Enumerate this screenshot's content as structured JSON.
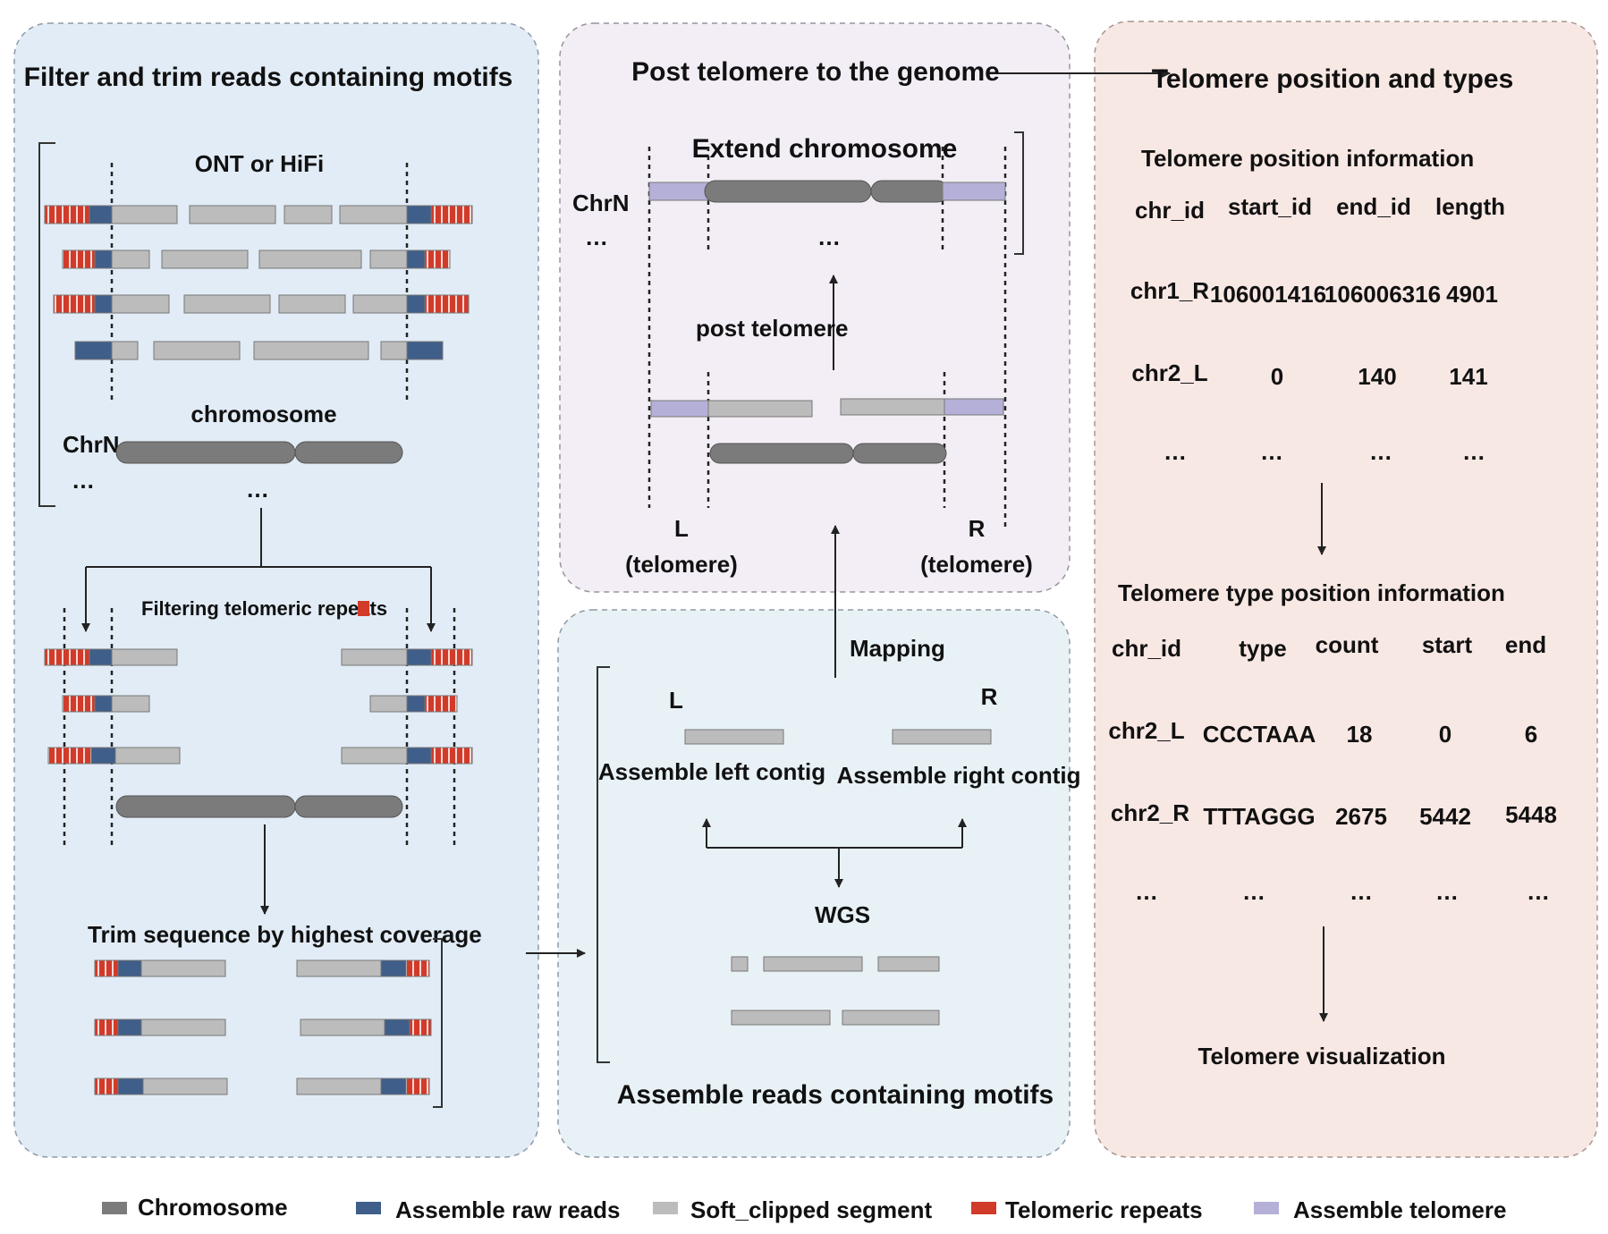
{
  "colors": {
    "chromosome": "#7b7b7b",
    "raw_reads": "#3f5e89",
    "soft_clipped": "#bcbcbc",
    "telomeric_repeats": "#d23a2a",
    "assemble_telomere": "#b5b0d8",
    "panel_left_bg": "#e2ecf6",
    "panel_top_bg": "#f3eef5",
    "panel_mid_bg": "#e8f2f6",
    "panel_right_bg": "#f8e8e4"
  },
  "panel1": {
    "title": "Filter and trim reads containing motifs",
    "ont_label": "ONT or HiFi",
    "chromosome_label": "chromosome",
    "chrn_label": "ChrN",
    "ellipsis": "…",
    "filter_label": "Filtering telomeric repeats",
    "trim_label": "Trim sequence by highest coverage"
  },
  "panel2": {
    "title": "Post telomere to the genome",
    "extend_label": "Extend chromosome",
    "chrn_label": "ChrN",
    "ellipsis": "…",
    "post_label": "post telomere",
    "left_label": "L",
    "right_label": "R",
    "telomere_label": "(telomere)"
  },
  "panel3": {
    "title": "Assemble reads containing motifs",
    "mapping_label": "Mapping",
    "left_label": "L",
    "right_label": "R",
    "left_contig": "Assemble left contig",
    "right_contig": "Assemble right contig",
    "wgs_label": "WGS"
  },
  "panel4": {
    "title": "Telomere position and types",
    "pos_title": "Telomere position information",
    "pos_headers": [
      "chr_id",
      "start_id",
      "end_id",
      "length"
    ],
    "pos_rows": [
      [
        "chr1_R",
        "106001416",
        "106006316",
        "4901"
      ],
      [
        "chr2_L",
        "0",
        "140",
        "141"
      ],
      [
        "…",
        "…",
        "…",
        "…"
      ]
    ],
    "type_title": "Telomere type position information",
    "type_headers": [
      "chr_id",
      "type",
      "count",
      "start",
      "end"
    ],
    "type_rows": [
      [
        "chr2_L",
        "CCCTAAA",
        "18",
        "0",
        "6"
      ],
      [
        "chr2_R",
        "TTTAGGG",
        "2675",
        "5442",
        "5448"
      ],
      [
        "…",
        "…",
        "…",
        "…",
        "…"
      ]
    ],
    "vis_label": "Telomere visualization"
  },
  "legend": [
    {
      "label": "Chromosome",
      "color": "#7b7b7b"
    },
    {
      "label": "Assemble raw reads",
      "color": "#3f5e89"
    },
    {
      "label": "Soft_clipped segment",
      "color": "#bcbcbc"
    },
    {
      "label": "Telomeric repeats",
      "color": "#d23a2a"
    },
    {
      "label": "Assemble telomere",
      "color": "#b5b0d8"
    }
  ]
}
